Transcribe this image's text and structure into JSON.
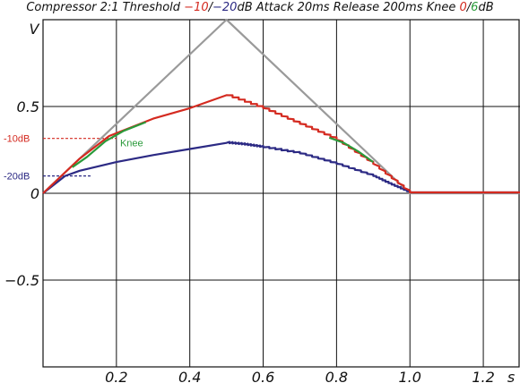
{
  "title": {
    "prefix": "Compressor 2:1 Threshold ",
    "thr1": "−10",
    "slash": "/",
    "thr2": "−20",
    "unit": "dB",
    "mid": " Attack 20ms Release 200ms Knee ",
    "knee1": "0",
    "slash2": "/",
    "knee2": "6",
    "suffix": "dB"
  },
  "colors": {
    "input": "#9a9a9a",
    "thr10": "#d42a20",
    "thr20": "#2c2a84",
    "knee": "#2a9a3a",
    "grid": "#111111"
  },
  "chart_data": {
    "type": "line",
    "title": "Compressor 2:1 Threshold −10/−20dB Attack 20ms Release 200ms Knee 0/6dB",
    "xlabel": "s",
    "ylabel": "V",
    "xlim": [
      0,
      1.3
    ],
    "ylim": [
      -1,
      1
    ],
    "x_ticks": [
      {
        "v": 0.2,
        "label": "0.2"
      },
      {
        "v": 0.4,
        "label": "0.4"
      },
      {
        "v": 0.6,
        "label": "0.6"
      },
      {
        "v": 0.8,
        "label": "0.8"
      },
      {
        "v": 1.0,
        "label": "1.0"
      },
      {
        "v": 1.2,
        "label": "1.2"
      }
    ],
    "y_ticks": [
      {
        "v": 0.5,
        "label": "0.5"
      },
      {
        "v": 0.0,
        "label": "0"
      },
      {
        "v": -0.5,
        "label": "−0.5"
      }
    ],
    "threshold_marks": [
      {
        "label": "-10dB",
        "y": 0.316,
        "x_end": 0.2,
        "color": "#d42a20"
      },
      {
        "label": "-20dB",
        "y": 0.1,
        "x_end": 0.13,
        "color": "#2c2a84"
      }
    ],
    "annotations": [
      {
        "text": "Knee",
        "x": 0.21,
        "y": 0.29,
        "color": "#2a9a3a"
      }
    ],
    "series": [
      {
        "key": "input",
        "color": "#9a9a9a",
        "points": [
          [
            0,
            0
          ],
          [
            0.5,
            1.0
          ],
          [
            1.0,
            0
          ],
          [
            1.3,
            0
          ]
        ]
      },
      {
        "key": "thr20",
        "color": "#2c2a84",
        "points": [
          [
            0,
            0
          ],
          [
            0.06,
            0.1
          ],
          [
            0.1,
            0.13
          ],
          [
            0.2,
            0.18
          ],
          [
            0.3,
            0.22
          ],
          [
            0.4,
            0.255
          ],
          [
            0.5,
            0.29
          ],
          [
            0.55,
            0.28
          ],
          [
            0.6,
            0.265
          ],
          [
            0.7,
            0.23
          ],
          [
            0.8,
            0.17
          ],
          [
            0.9,
            0.1
          ],
          [
            0.95,
            0.05
          ],
          [
            1.0,
            0.005
          ],
          [
            1.3,
            0.005
          ]
        ],
        "ripple": 0.008
      },
      {
        "key": "thr10",
        "color": "#d42a20",
        "points": [
          [
            0,
            0
          ],
          [
            0.1,
            0.2
          ],
          [
            0.18,
            0.33
          ],
          [
            0.3,
            0.43
          ],
          [
            0.4,
            0.49
          ],
          [
            0.5,
            0.565
          ],
          [
            0.6,
            0.49
          ],
          [
            0.7,
            0.4
          ],
          [
            0.8,
            0.31
          ],
          [
            0.9,
            0.17
          ],
          [
            1.0,
            0.005
          ],
          [
            1.3,
            0.005
          ]
        ],
        "ripple": 0.012
      },
      {
        "key": "knee",
        "color": "#2a9a3a",
        "points": [
          [
            0.08,
            0.15
          ],
          [
            0.12,
            0.21
          ],
          [
            0.17,
            0.3
          ],
          [
            0.22,
            0.36
          ],
          [
            0.28,
            0.41
          ]
        ],
        "points2": [
          [
            0.78,
            0.32
          ],
          [
            0.82,
            0.29
          ],
          [
            0.86,
            0.24
          ],
          [
            0.9,
            0.18
          ]
        ]
      }
    ]
  }
}
